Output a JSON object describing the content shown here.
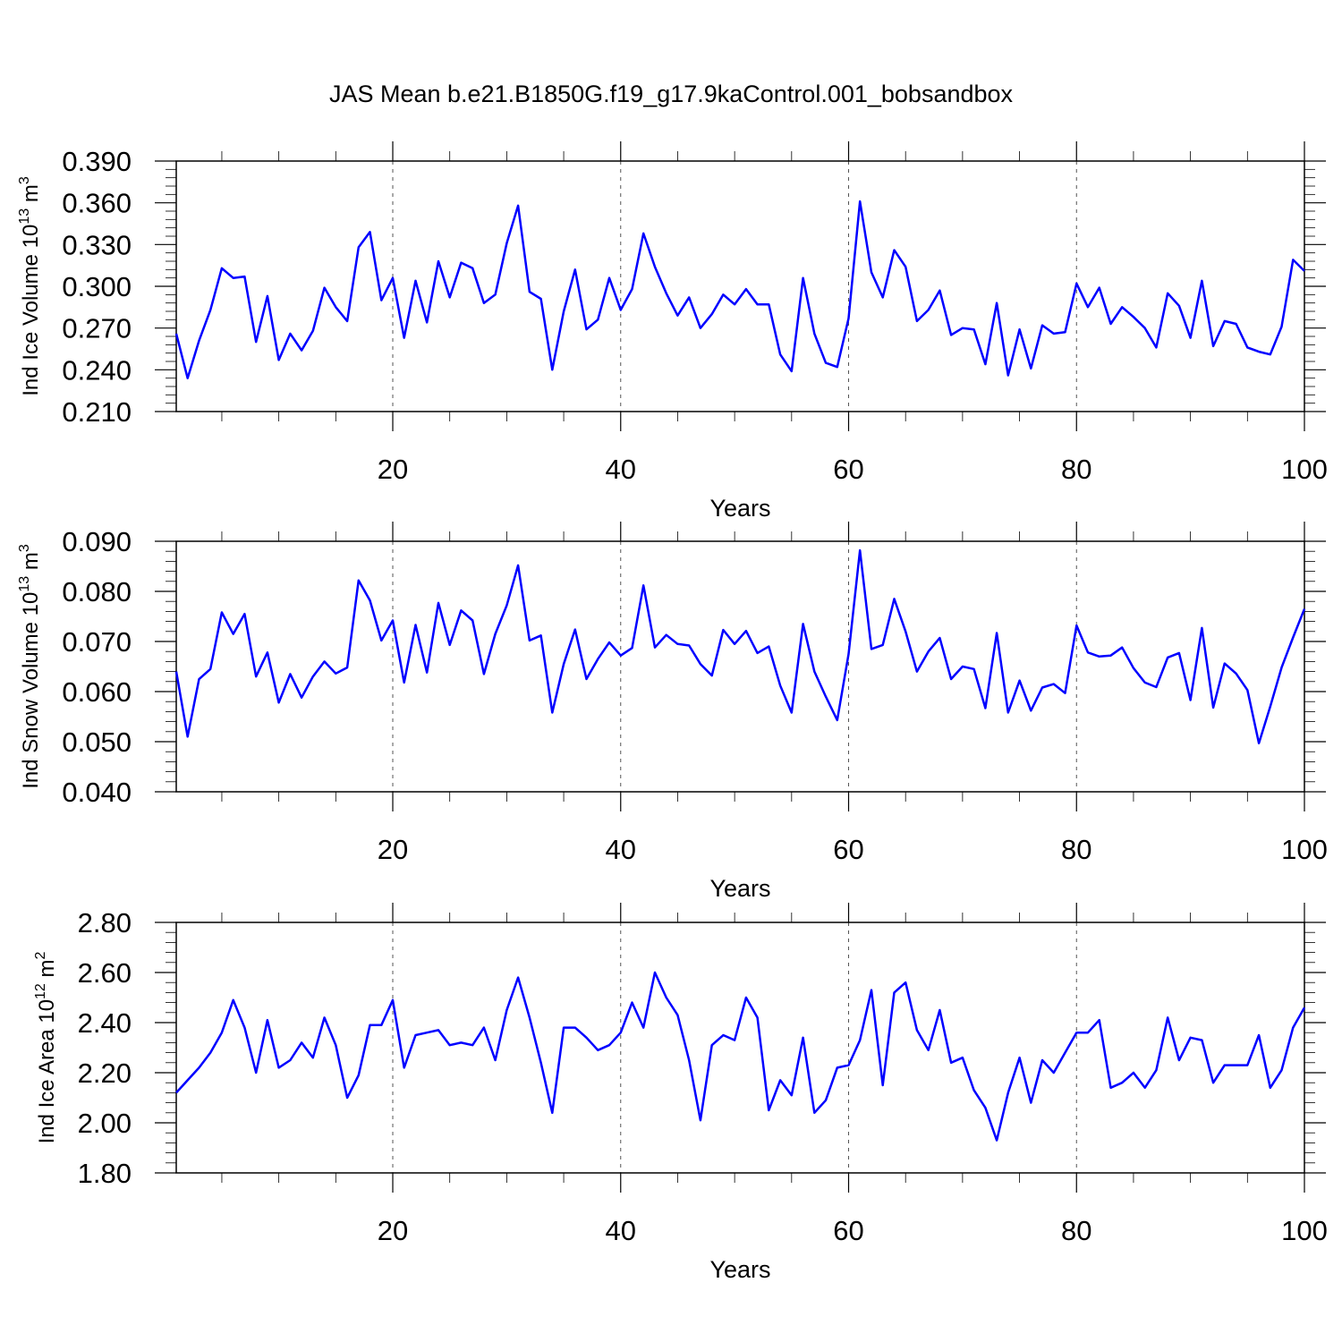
{
  "title": "JAS Mean b.e21.B1850G.f19_g17.9kaControl.001_bobsandbox",
  "colors": {
    "series": "#0000ff"
  },
  "chart_data": [
    {
      "type": "line",
      "ylabel": {
        "base": "Ind Ice Volume 10",
        "exp": "13",
        "unit": "m",
        "unit_exp": "3"
      },
      "xlabel": "Years",
      "xlim": [
        1,
        100
      ],
      "ylim": [
        0.21,
        0.39
      ],
      "xticks": [
        20,
        40,
        60,
        80,
        100
      ],
      "yticks": [
        "0.210",
        "0.240",
        "0.270",
        "0.300",
        "0.330",
        "0.360",
        "0.390"
      ],
      "grid": "vertical dashed at x tick positions",
      "x": [
        1,
        2,
        3,
        4,
        5,
        6,
        7,
        8,
        9,
        10,
        11,
        12,
        13,
        14,
        15,
        16,
        17,
        18,
        19,
        20,
        21,
        22,
        23,
        24,
        25,
        26,
        27,
        28,
        29,
        30,
        31,
        32,
        33,
        34,
        35,
        36,
        37,
        38,
        39,
        40,
        41,
        42,
        43,
        44,
        45,
        46,
        47,
        48,
        49,
        50,
        51,
        52,
        53,
        54,
        55,
        56,
        57,
        58,
        59,
        60,
        61,
        62,
        63,
        64,
        65,
        66,
        67,
        68,
        69,
        70,
        71,
        72,
        73,
        74,
        75,
        76,
        77,
        78,
        79,
        80,
        81,
        82,
        83,
        84,
        85,
        86,
        87,
        88,
        89,
        90,
        91,
        92,
        93,
        94,
        95,
        96,
        97,
        98,
        99,
        100
      ],
      "series": [
        {
          "values": [
            0.266,
            0.234,
            0.261,
            0.283,
            0.313,
            0.306,
            0.307,
            0.26,
            0.293,
            0.247,
            0.266,
            0.254,
            0.268,
            0.299,
            0.285,
            0.275,
            0.328,
            0.339,
            0.29,
            0.306,
            0.263,
            0.304,
            0.274,
            0.318,
            0.292,
            0.317,
            0.313,
            0.288,
            0.294,
            0.331,
            0.358,
            0.296,
            0.291,
            0.24,
            0.282,
            0.312,
            0.269,
            0.276,
            0.306,
            0.283,
            0.298,
            0.338,
            0.314,
            0.295,
            0.279,
            0.292,
            0.27,
            0.28,
            0.294,
            0.287,
            0.298,
            0.287,
            0.287,
            0.251,
            0.239,
            0.306,
            0.266,
            0.245,
            0.242,
            0.277,
            0.361,
            0.31,
            0.292,
            0.326,
            0.314,
            0.275,
            0.283,
            0.297,
            0.265,
            0.27,
            0.269,
            0.244,
            0.288,
            0.236,
            0.269,
            0.241,
            0.272,
            0.266,
            0.267,
            0.302,
            0.285,
            0.299,
            0.273,
            0.285,
            0.278,
            0.27,
            0.256,
            0.295,
            0.286,
            0.263,
            0.304,
            0.257,
            0.275,
            0.273,
            0.256,
            0.253,
            0.251,
            0.271,
            0.319,
            0.311
          ]
        }
      ]
    },
    {
      "type": "line",
      "ylabel": {
        "base": "Ind Snow Volume 10",
        "exp": "13",
        "unit": "m",
        "unit_exp": "3"
      },
      "xlabel": "Years",
      "xlim": [
        1,
        100
      ],
      "ylim": [
        0.04,
        0.09
      ],
      "xticks": [
        20,
        40,
        60,
        80,
        100
      ],
      "yticks": [
        "0.040",
        "0.050",
        "0.060",
        "0.070",
        "0.080",
        "0.090"
      ],
      "grid": "vertical dashed at x tick positions",
      "x": [
        1,
        2,
        3,
        4,
        5,
        6,
        7,
        8,
        9,
        10,
        11,
        12,
        13,
        14,
        15,
        16,
        17,
        18,
        19,
        20,
        21,
        22,
        23,
        24,
        25,
        26,
        27,
        28,
        29,
        30,
        31,
        32,
        33,
        34,
        35,
        36,
        37,
        38,
        39,
        40,
        41,
        42,
        43,
        44,
        45,
        46,
        47,
        48,
        49,
        50,
        51,
        52,
        53,
        54,
        55,
        56,
        57,
        58,
        59,
        60,
        61,
        62,
        63,
        64,
        65,
        66,
        67,
        68,
        69,
        70,
        71,
        72,
        73,
        74,
        75,
        76,
        77,
        78,
        79,
        80,
        81,
        82,
        83,
        84,
        85,
        86,
        87,
        88,
        89,
        90,
        91,
        92,
        93,
        94,
        95,
        96,
        97,
        98,
        99,
        100
      ],
      "series": [
        {
          "values": [
            0.064,
            0.051,
            0.0625,
            0.0645,
            0.0758,
            0.0715,
            0.0755,
            0.063,
            0.0678,
            0.0578,
            0.0635,
            0.0588,
            0.063,
            0.066,
            0.0636,
            0.0648,
            0.0822,
            0.0782,
            0.0702,
            0.0742,
            0.0618,
            0.0733,
            0.0638,
            0.0777,
            0.0693,
            0.0762,
            0.0742,
            0.0635,
            0.0715,
            0.0772,
            0.0852,
            0.0702,
            0.0712,
            0.0558,
            0.0655,
            0.0724,
            0.0625,
            0.0665,
            0.0698,
            0.0672,
            0.0687,
            0.0812,
            0.0688,
            0.0713,
            0.0695,
            0.0692,
            0.0655,
            0.0632,
            0.0723,
            0.0695,
            0.0721,
            0.0677,
            0.069,
            0.0612,
            0.0558,
            0.0735,
            0.064,
            0.059,
            0.0543,
            0.0675,
            0.0882,
            0.0685,
            0.0693,
            0.0785,
            0.072,
            0.064,
            0.068,
            0.0707,
            0.0625,
            0.065,
            0.0645,
            0.0567,
            0.0717,
            0.0558,
            0.0622,
            0.0562,
            0.0608,
            0.0615,
            0.0597,
            0.0732,
            0.0678,
            0.067,
            0.0672,
            0.0688,
            0.0647,
            0.0618,
            0.0609,
            0.0668,
            0.0677,
            0.0583,
            0.0727,
            0.0568,
            0.0656,
            0.0636,
            0.0603,
            0.0497,
            0.057,
            0.0648,
            0.0708,
            0.0765
          ]
        }
      ]
    },
    {
      "type": "line",
      "ylabel": {
        "base": "Ind Ice Area 10",
        "exp": "12",
        "unit": "m",
        "unit_exp": "2"
      },
      "xlabel": "Years",
      "xlim": [
        1,
        100
      ],
      "ylim": [
        1.8,
        2.8
      ],
      "xticks": [
        20,
        40,
        60,
        80,
        100
      ],
      "yticks": [
        "1.80",
        "2.00",
        "2.20",
        "2.40",
        "2.60",
        "2.80"
      ],
      "grid": "vertical dashed at x tick positions",
      "x": [
        1,
        2,
        3,
        4,
        5,
        6,
        7,
        8,
        9,
        10,
        11,
        12,
        13,
        14,
        15,
        16,
        17,
        18,
        19,
        20,
        21,
        22,
        23,
        24,
        25,
        26,
        27,
        28,
        29,
        30,
        31,
        32,
        33,
        34,
        35,
        36,
        37,
        38,
        39,
        40,
        41,
        42,
        43,
        44,
        45,
        46,
        47,
        48,
        49,
        50,
        51,
        52,
        53,
        54,
        55,
        56,
        57,
        58,
        59,
        60,
        61,
        62,
        63,
        64,
        65,
        66,
        67,
        68,
        69,
        70,
        71,
        72,
        73,
        74,
        75,
        76,
        77,
        78,
        79,
        80,
        81,
        82,
        83,
        84,
        85,
        86,
        87,
        88,
        89,
        90,
        91,
        92,
        93,
        94,
        95,
        96,
        97,
        98,
        99,
        100
      ],
      "series": [
        {
          "values": [
            2.12,
            2.17,
            2.22,
            2.28,
            2.36,
            2.49,
            2.38,
            2.2,
            2.41,
            2.22,
            2.25,
            2.32,
            2.26,
            2.42,
            2.31,
            2.1,
            2.19,
            2.39,
            2.39,
            2.49,
            2.22,
            2.35,
            2.36,
            2.37,
            2.31,
            2.32,
            2.31,
            2.38,
            2.25,
            2.45,
            2.58,
            2.42,
            2.24,
            2.04,
            2.38,
            2.38,
            2.34,
            2.29,
            2.31,
            2.36,
            2.48,
            2.38,
            2.6,
            2.5,
            2.43,
            2.25,
            2.01,
            2.31,
            2.35,
            2.33,
            2.5,
            2.42,
            2.05,
            2.17,
            2.11,
            2.34,
            2.04,
            2.09,
            2.22,
            2.23,
            2.33,
            2.53,
            2.15,
            2.52,
            2.56,
            2.37,
            2.29,
            2.45,
            2.24,
            2.26,
            2.13,
            2.06,
            1.93,
            2.12,
            2.26,
            2.08,
            2.25,
            2.2,
            2.28,
            2.36,
            2.36,
            2.41,
            2.14,
            2.16,
            2.2,
            2.14,
            2.21,
            2.42,
            2.25,
            2.34,
            2.33,
            2.16,
            2.23,
            2.23,
            2.23,
            2.35,
            2.14,
            2.21,
            2.38,
            2.46
          ]
        }
      ]
    }
  ]
}
